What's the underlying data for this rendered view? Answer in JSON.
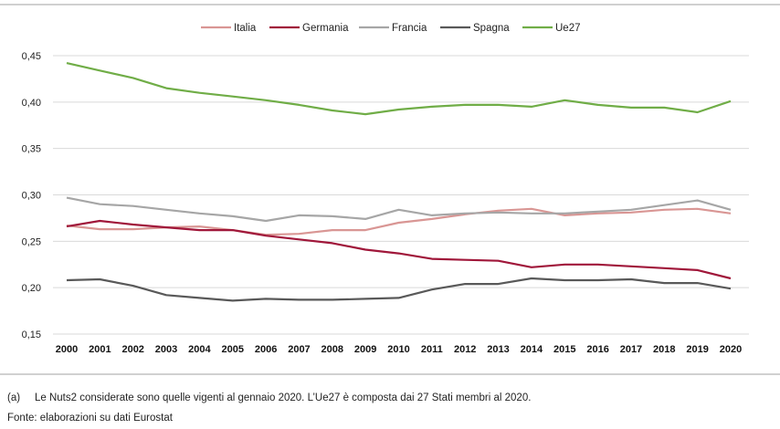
{
  "chart_data": {
    "type": "line",
    "title": "",
    "xlabel": "",
    "ylabel": "",
    "x": [
      "2000",
      "2001",
      "2002",
      "2003",
      "2004",
      "2005",
      "2006",
      "2007",
      "2008",
      "2009",
      "2010",
      "2011",
      "2012",
      "2013",
      "2014",
      "2015",
      "2016",
      "2017",
      "2018",
      "2019",
      "2020"
    ],
    "yticks": [
      "0,15",
      "0,20",
      "0,25",
      "0,30",
      "0,35",
      "0,40",
      "0,45"
    ],
    "ylim": [
      0.15,
      0.45
    ],
    "grid": true,
    "legend_position": "top-center",
    "series": [
      {
        "name": "Italia",
        "color": "#d99694",
        "values": [
          0.267,
          0.263,
          0.263,
          0.265,
          0.266,
          0.262,
          0.257,
          0.258,
          0.262,
          0.262,
          0.27,
          0.274,
          0.279,
          0.283,
          0.285,
          0.278,
          0.28,
          0.281,
          0.284,
          0.285,
          0.28
        ]
      },
      {
        "name": "Germania",
        "color": "#a0173a",
        "values": [
          0.266,
          0.272,
          0.268,
          0.265,
          0.262,
          0.262,
          0.256,
          0.252,
          0.248,
          0.241,
          0.237,
          0.231,
          0.23,
          0.229,
          0.222,
          0.225,
          0.225,
          0.223,
          0.221,
          0.219,
          0.21
        ]
      },
      {
        "name": "Francia",
        "color": "#a6a6a6",
        "values": [
          0.297,
          0.29,
          0.288,
          0.284,
          0.28,
          0.277,
          0.272,
          0.278,
          0.277,
          0.274,
          0.284,
          0.278,
          0.28,
          0.281,
          0.28,
          0.28,
          0.282,
          0.284,
          0.289,
          0.294,
          0.284
        ]
      },
      {
        "name": "Spagna",
        "color": "#595959",
        "values": [
          0.208,
          0.209,
          0.202,
          0.192,
          0.189,
          0.186,
          0.188,
          0.187,
          0.187,
          0.188,
          0.189,
          0.198,
          0.204,
          0.204,
          0.21,
          0.208,
          0.208,
          0.209,
          0.205,
          0.205,
          0.199
        ]
      },
      {
        "name": "Ue27",
        "color": "#70ad47",
        "values": [
          0.442,
          0.434,
          0.426,
          0.415,
          0.41,
          0.406,
          0.402,
          0.397,
          0.391,
          0.387,
          0.392,
          0.395,
          0.397,
          0.397,
          0.395,
          0.402,
          0.397,
          0.394,
          0.394,
          0.389,
          0.401
        ]
      }
    ]
  },
  "notes": {
    "label": "(a)",
    "text": "Le Nuts2 considerate sono quelle vigenti al gennaio 2020. L’Ue27 è composta dai 27 Stati membri al 2020.",
    "source": "Fonte: elaborazioni su dati Eurostat"
  }
}
